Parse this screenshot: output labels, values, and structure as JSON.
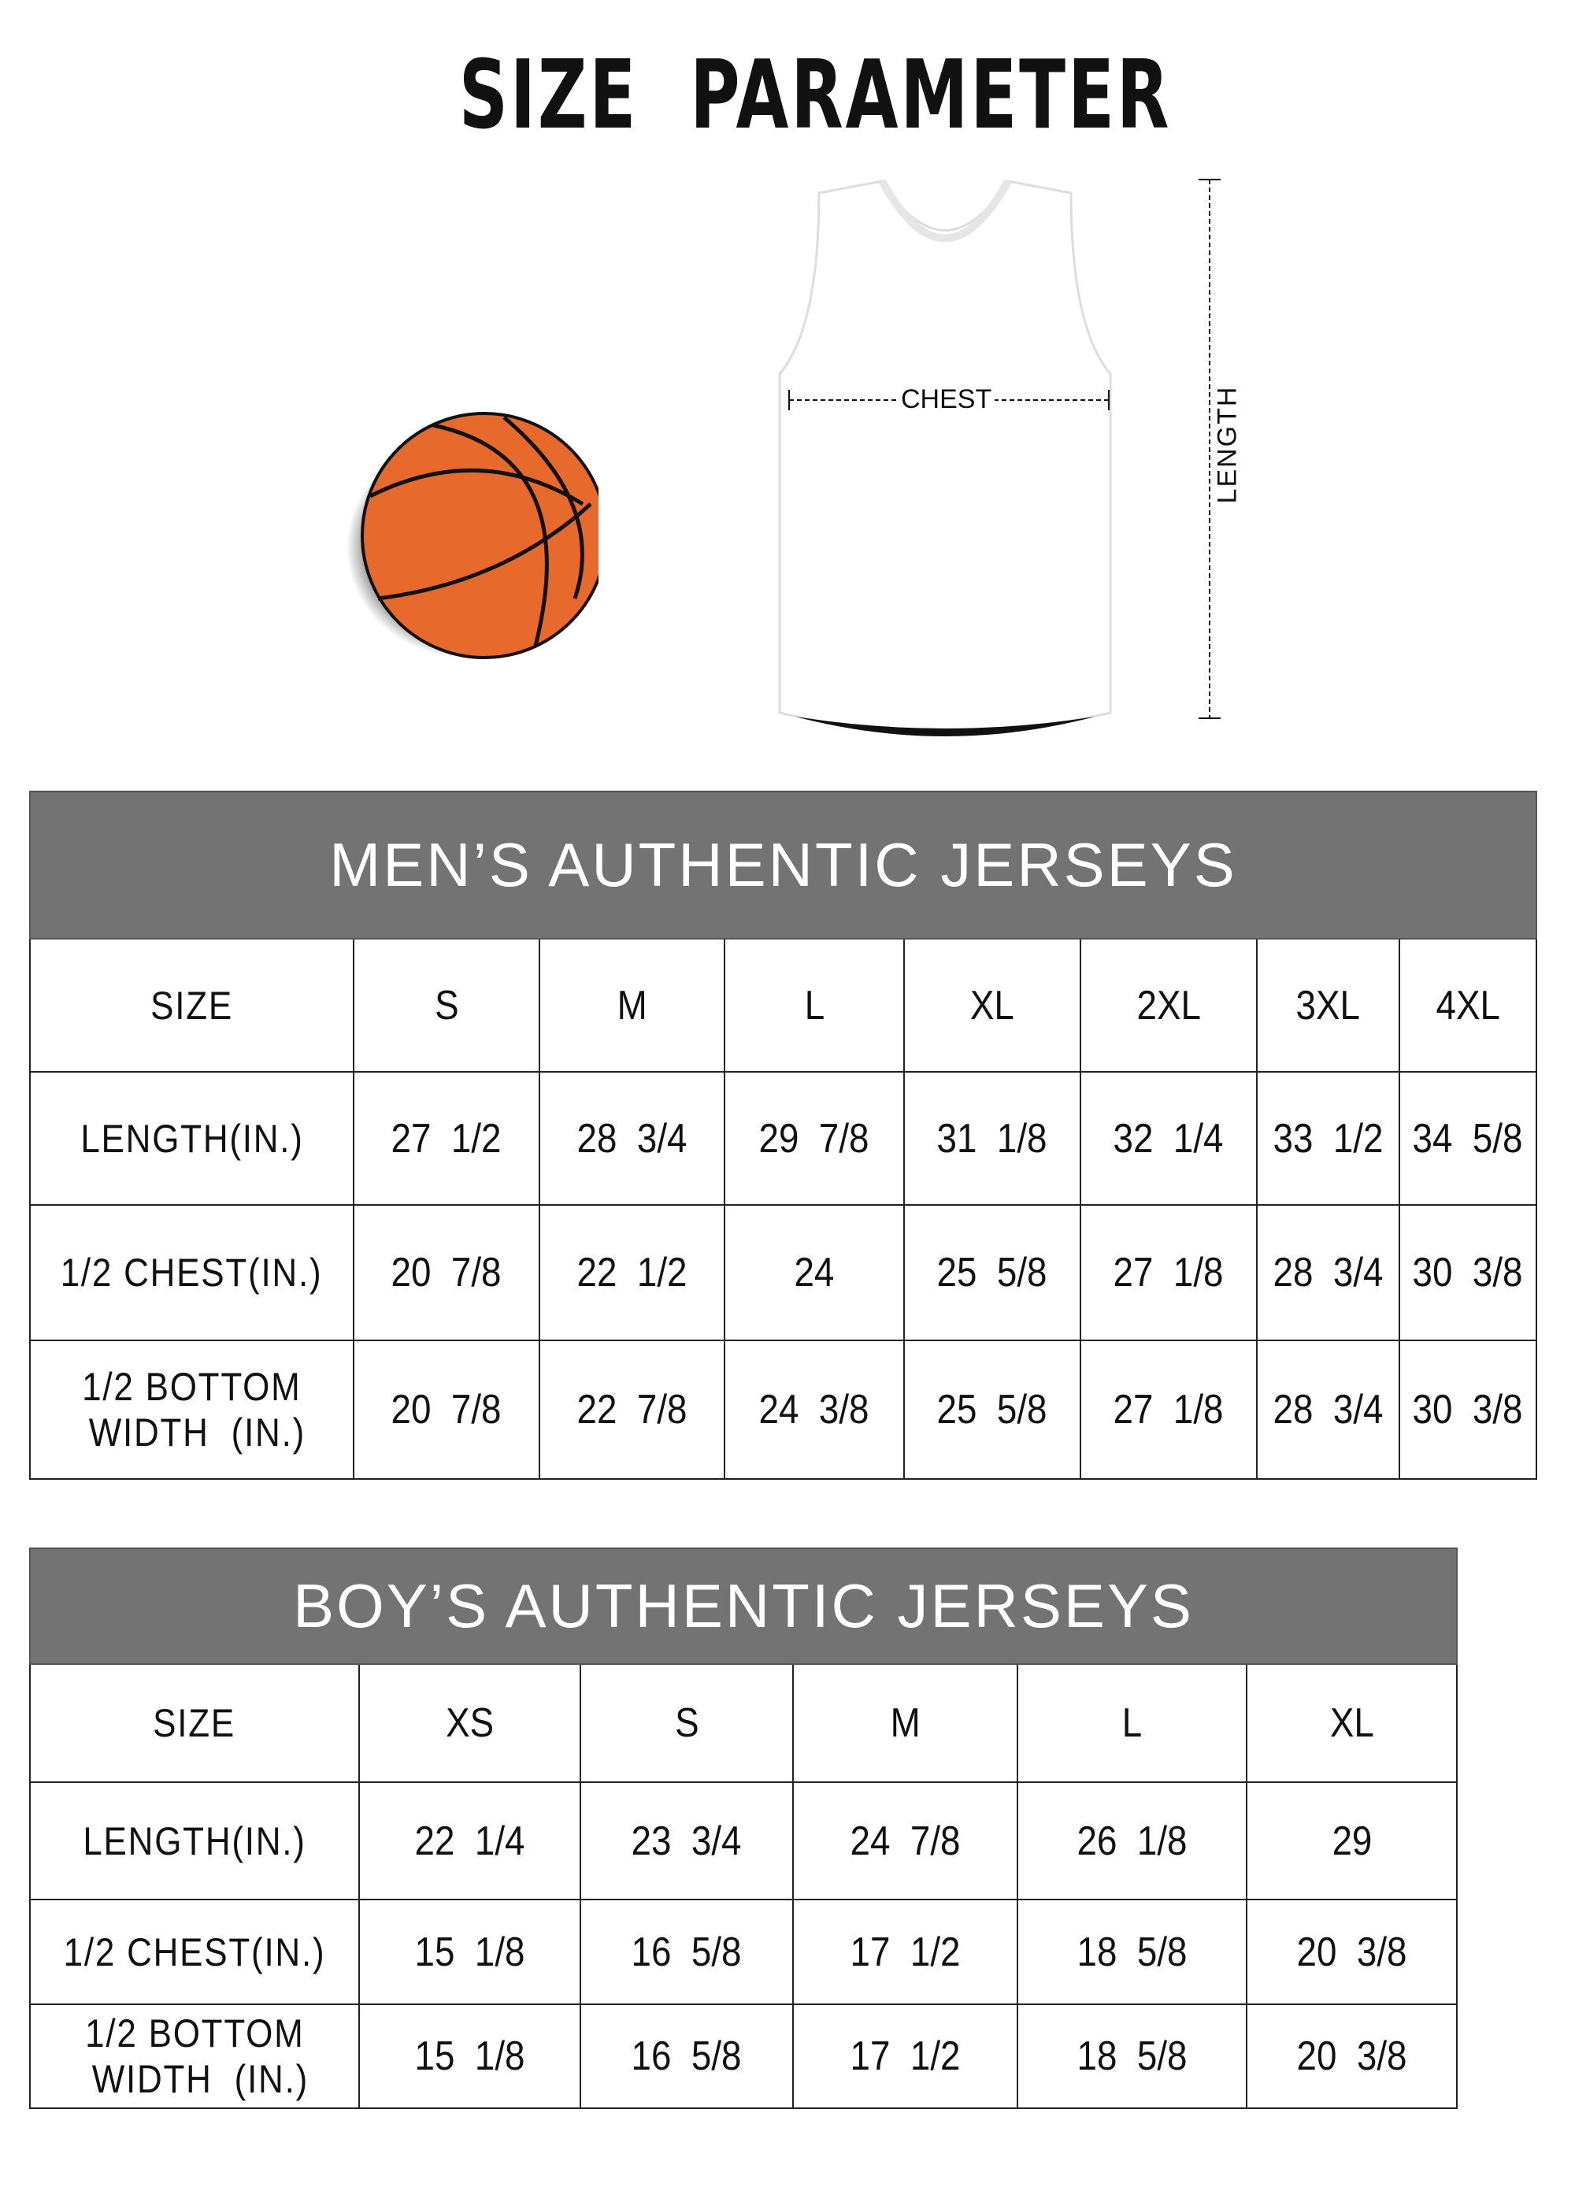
{
  "title": "SIZE  PARAMETER",
  "diagram": {
    "chest_label": "CHEST",
    "length_label": "LENGTH"
  },
  "colors": {
    "header_bg": "#737373",
    "ball": "#e8692c"
  },
  "men": {
    "title": "MEN’S AUTHENTIC JERSEYS",
    "header": [
      "SIZE",
      "S",
      "M",
      "L",
      "XL",
      "2XL",
      "3XL",
      "4XL"
    ],
    "rows": [
      [
        "LENGTH(IN.)",
        "27  1/2",
        "28  3/4",
        "29  7/8",
        "31  1/8",
        "32  1/4",
        "33  1/2",
        "34  5/8"
      ],
      [
        "1/2 CHEST(IN.)",
        "20  7/8",
        "22  1/2",
        "24",
        "25  5/8",
        "27  1/8",
        "28  3/4",
        "30  3/8"
      ],
      [
        "1/2 BOTTOM\n WIDTH  (IN.)",
        "20  7/8",
        "22  7/8",
        "24  3/8",
        "25  5/8",
        "27  1/8",
        "28  3/4",
        "30  3/8"
      ]
    ]
  },
  "boys": {
    "title": "BOY’S AUTHENTIC JERSEYS",
    "header": [
      "SIZE",
      "XS",
      "S",
      "M",
      "L",
      "XL"
    ],
    "rows": [
      [
        "LENGTH(IN.)",
        "22  1/4",
        "23  3/4",
        "24  7/8",
        "26  1/8",
        "29"
      ],
      [
        "1/2 CHEST(IN.)",
        "15  1/8",
        "16  5/8",
        "17  1/2",
        "18  5/8",
        "20  3/8"
      ],
      [
        "1/2 BOTTOM\n WIDTH  (IN.)",
        "15  1/8",
        "16  5/8",
        "17  1/2",
        "18  5/8",
        "20  3/8"
      ]
    ]
  }
}
